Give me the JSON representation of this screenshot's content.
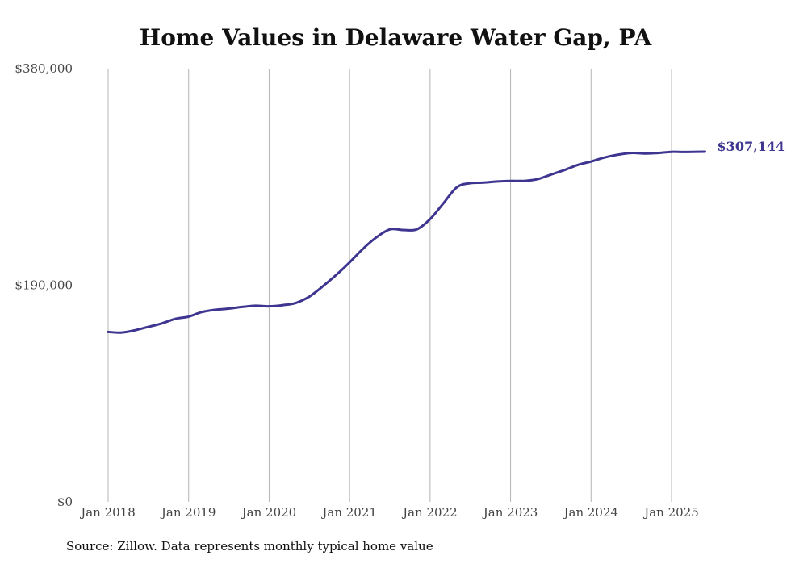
{
  "chart_data": {
    "type": "line",
    "title": "Home Values in Delaware Water Gap, PA",
    "xlabel": "",
    "ylabel": "",
    "x_tick_labels": [
      "Jan 2018",
      "Jan 2019",
      "Jan 2020",
      "Jan 2021",
      "Jan 2022",
      "Jan 2023",
      "Jan 2024",
      "Jan 2025"
    ],
    "y_tick_labels": [
      "$0",
      "$190,000",
      "$380,000"
    ],
    "y_ticks": [
      0,
      190000,
      380000
    ],
    "ylim": [
      0,
      380000
    ],
    "xlim": [
      "2018-01",
      "2025-06"
    ],
    "grid": "vertical",
    "legend": "none",
    "line_color": "#3d3590",
    "series": [
      {
        "x": [
          "2018-01",
          "2018-03",
          "2018-05",
          "2018-07",
          "2018-09",
          "2018-11",
          "2019-01",
          "2019-03",
          "2019-05",
          "2019-07",
          "2019-09",
          "2019-11",
          "2020-01",
          "2020-03",
          "2020-05",
          "2020-07",
          "2020-09",
          "2020-11",
          "2021-01",
          "2021-03",
          "2021-05",
          "2021-07",
          "2021-09",
          "2021-11",
          "2022-01",
          "2022-03",
          "2022-05",
          "2022-07",
          "2022-09",
          "2022-11",
          "2023-01",
          "2023-03",
          "2023-05",
          "2023-07",
          "2023-09",
          "2023-11",
          "2024-01",
          "2024-03",
          "2024-05",
          "2024-07",
          "2024-09",
          "2024-11",
          "2025-01",
          "2025-03",
          "2025-06"
        ],
        "values": [
          149000,
          148500,
          150500,
          153500,
          156500,
          160500,
          162500,
          166500,
          168500,
          169500,
          171000,
          172000,
          171500,
          172500,
          174500,
          180000,
          189000,
          199000,
          210000,
          222000,
          232000,
          239000,
          238500,
          239000,
          248000,
          262000,
          276000,
          279500,
          280000,
          281000,
          281500,
          281500,
          283000,
          287000,
          291000,
          295500,
          298500,
          302000,
          304500,
          306000,
          305500,
          306000,
          307000,
          306800,
          307144
        ]
      }
    ],
    "end_label": "$307,144",
    "source": "Source: Zillow. Data represents monthly typical home value"
  }
}
